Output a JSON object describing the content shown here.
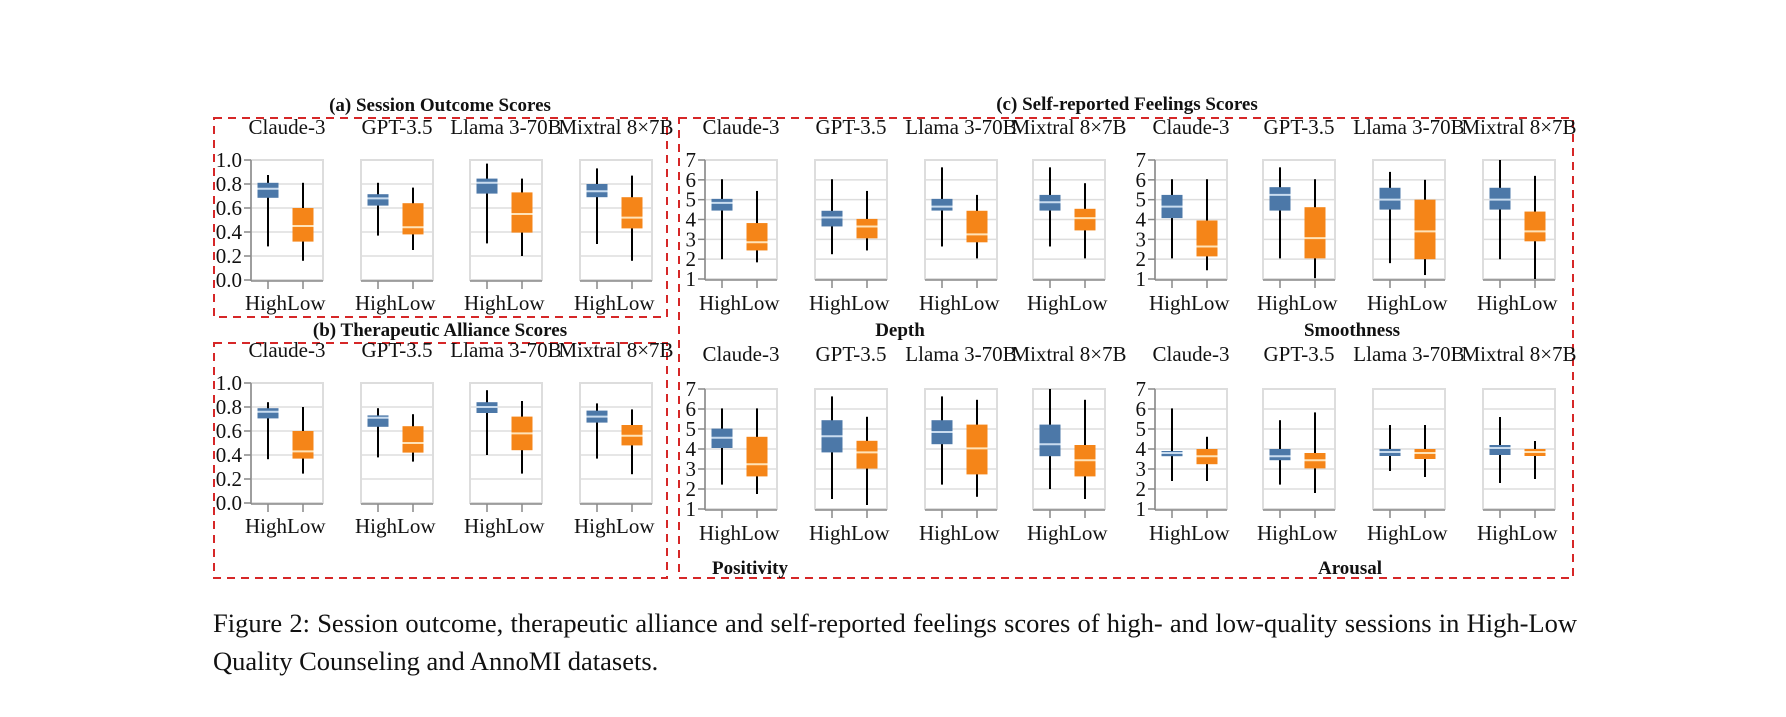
{
  "figure": {
    "caption": "Figure 2: Session outcome, therapeutic alliance and self-reported feelings scores of high- and low-quality sessions in High-Low Quality Counseling and AnnoMI datasets.",
    "group_c_title": "(c) Self-reported Feelings Scores",
    "colors": {
      "High": "#4c78a8",
      "Low": "#f58518",
      "High_median": "#c9dcef",
      "Low_median": "#ffe3b8",
      "whisker": "#000000",
      "frame": "#dddddd",
      "dashed_border": "#d62728"
    }
  },
  "chart_data": [
    {
      "id": "a",
      "type": "box",
      "title": "(a) Session Outcome Scores",
      "xlabel": "",
      "ylim": [
        0,
        1
      ],
      "yticks": [
        "0.0",
        "0.2",
        "0.4",
        "0.6",
        "0.8",
        "1.0"
      ],
      "categories": [
        "High",
        "Low"
      ],
      "grid": true,
      "facets": [
        {
          "model": "Claude-3",
          "boxes": [
            {
              "category": "High",
              "min": 0.28,
              "q1": 0.685,
              "median": 0.76,
              "q3": 0.81,
              "max": 0.875
            },
            {
              "category": "Low",
              "min": 0.16,
              "q1": 0.32,
              "median": 0.45,
              "q3": 0.6,
              "max": 0.81
            }
          ]
        },
        {
          "model": "GPT-3.5",
          "boxes": [
            {
              "category": "High",
              "min": 0.37,
              "q1": 0.62,
              "median": 0.68,
              "q3": 0.715,
              "max": 0.81
            },
            {
              "category": "Low",
              "min": 0.25,
              "q1": 0.38,
              "median": 0.44,
              "q3": 0.64,
              "max": 0.77
            }
          ]
        },
        {
          "model": "Llama 3-70B",
          "boxes": [
            {
              "category": "High",
              "min": 0.305,
              "q1": 0.72,
              "median": 0.81,
              "q3": 0.845,
              "max": 0.97
            },
            {
              "category": "Low",
              "min": 0.2,
              "q1": 0.395,
              "median": 0.55,
              "q3": 0.73,
              "max": 0.845
            }
          ]
        },
        {
          "model": "Mixtral 8×7B",
          "boxes": [
            {
              "category": "High",
              "min": 0.3,
              "q1": 0.69,
              "median": 0.74,
              "q3": 0.8,
              "max": 0.93
            },
            {
              "category": "Low",
              "min": 0.16,
              "q1": 0.43,
              "median": 0.52,
              "q3": 0.69,
              "max": 0.87
            }
          ]
        }
      ]
    },
    {
      "id": "b",
      "type": "box",
      "title": "(b) Therapeutic Alliance Scores",
      "xlabel": "",
      "ylim": [
        0,
        1
      ],
      "yticks": [
        "0.0",
        "0.2",
        "0.4",
        "0.6",
        "0.8",
        "1.0"
      ],
      "categories": [
        "High",
        "Low"
      ],
      "grid": true,
      "facets": [
        {
          "model": "Claude-3",
          "boxes": [
            {
              "category": "High",
              "min": 0.365,
              "q1": 0.705,
              "median": 0.76,
              "q3": 0.79,
              "max": 0.84
            },
            {
              "category": "Low",
              "min": 0.245,
              "q1": 0.37,
              "median": 0.43,
              "q3": 0.6,
              "max": 0.8
            }
          ]
        },
        {
          "model": "GPT-3.5",
          "boxes": [
            {
              "category": "High",
              "min": 0.38,
              "q1": 0.635,
              "median": 0.71,
              "q3": 0.73,
              "max": 0.79
            },
            {
              "category": "Low",
              "min": 0.345,
              "q1": 0.42,
              "median": 0.5,
              "q3": 0.64,
              "max": 0.74
            }
          ]
        },
        {
          "model": "Llama 3-70B",
          "boxes": [
            {
              "category": "High",
              "min": 0.4,
              "q1": 0.75,
              "median": 0.8,
              "q3": 0.84,
              "max": 0.94
            },
            {
              "category": "Low",
              "min": 0.245,
              "q1": 0.44,
              "median": 0.58,
              "q3": 0.72,
              "max": 0.85
            }
          ]
        },
        {
          "model": "Mixtral 8×7B",
          "boxes": [
            {
              "category": "High",
              "min": 0.37,
              "q1": 0.67,
              "median": 0.72,
              "q3": 0.77,
              "max": 0.83
            },
            {
              "category": "Low",
              "min": 0.24,
              "q1": 0.48,
              "median": 0.56,
              "q3": 0.65,
              "max": 0.78
            }
          ]
        }
      ]
    },
    {
      "id": "c-depth",
      "type": "box",
      "group": "(c) Self-reported Feelings Scores",
      "title": "",
      "xlabel": "Depth",
      "ylim": [
        1,
        7
      ],
      "yticks": [
        "1",
        "2",
        "3",
        "4",
        "5",
        "6",
        "7"
      ],
      "categories": [
        "High",
        "Low"
      ],
      "grid": true,
      "facets": [
        {
          "model": "Claude-3",
          "boxes": [
            {
              "category": "High",
              "min": 2.0,
              "q1": 4.45,
              "median": 4.84,
              "q3": 5.04,
              "max": 6.03
            },
            {
              "category": "Low",
              "min": 1.84,
              "q1": 2.44,
              "median": 2.85,
              "q3": 3.82,
              "max": 5.44
            }
          ]
        },
        {
          "model": "GPT-3.5",
          "boxes": [
            {
              "category": "High",
              "min": 2.25,
              "q1": 3.65,
              "median": 4.1,
              "q3": 4.44,
              "max": 6.03
            },
            {
              "category": "Low",
              "min": 2.44,
              "q1": 3.05,
              "median": 3.65,
              "q3": 4.03,
              "max": 5.44
            }
          ]
        },
        {
          "model": "Llama 3-70B",
          "boxes": [
            {
              "category": "High",
              "min": 2.64,
              "q1": 4.45,
              "median": 4.65,
              "q3": 5.04,
              "max": 6.63
            },
            {
              "category": "Low",
              "min": 2.04,
              "q1": 2.85,
              "median": 3.25,
              "q3": 4.44,
              "max": 5.24
            }
          ]
        },
        {
          "model": "Mixtral 8×7B",
          "boxes": [
            {
              "category": "High",
              "min": 2.64,
              "q1": 4.45,
              "median": 4.87,
              "q3": 5.24,
              "max": 6.63
            },
            {
              "category": "Low",
              "min": 2.04,
              "q1": 3.45,
              "median": 4.07,
              "q3": 4.54,
              "max": 5.83
            }
          ]
        }
      ]
    },
    {
      "id": "c-smoothness",
      "type": "box",
      "group": "(c) Self-reported Feelings Scores",
      "title": "",
      "xlabel": "Smoothness",
      "ylim": [
        1,
        7
      ],
      "yticks": [
        "1",
        "2",
        "3",
        "4",
        "5",
        "6",
        "7"
      ],
      "categories": [
        "High",
        "Low"
      ],
      "grid": true,
      "facets": [
        {
          "model": "Claude-3",
          "boxes": [
            {
              "category": "High",
              "min": 2.04,
              "q1": 4.07,
              "median": 4.65,
              "q3": 5.24,
              "max": 6.03
            },
            {
              "category": "Low",
              "min": 1.44,
              "q1": 2.14,
              "median": 2.64,
              "q3": 3.95,
              "max": 6.03
            }
          ]
        },
        {
          "model": "GPT-3.5",
          "boxes": [
            {
              "category": "High",
              "min": 2.04,
              "q1": 4.45,
              "median": 5.24,
              "q3": 5.63,
              "max": 6.63
            },
            {
              "category": "Low",
              "min": 1.04,
              "q1": 2.04,
              "median": 3.06,
              "q3": 4.62,
              "max": 6.03
            }
          ]
        },
        {
          "model": "Llama 3-70B",
          "boxes": [
            {
              "category": "High",
              "min": 1.8,
              "q1": 4.5,
              "median": 5.0,
              "q3": 5.6,
              "max": 6.4
            },
            {
              "category": "Low",
              "min": 1.2,
              "q1": 2.0,
              "median": 3.4,
              "q3": 5.0,
              "max": 6.0
            }
          ]
        },
        {
          "model": "Mixtral 8×7B",
          "boxes": [
            {
              "category": "High",
              "min": 2.0,
              "q1": 4.5,
              "median": 5.0,
              "q3": 5.6,
              "max": 7.0
            },
            {
              "category": "Low",
              "min": 1.0,
              "q1": 2.9,
              "median": 3.4,
              "q3": 4.4,
              "max": 6.2
            }
          ]
        }
      ]
    },
    {
      "id": "c-positivity",
      "type": "box",
      "group": "(c) Self-reported Feelings Scores",
      "title": "",
      "xlabel": "Positivity",
      "ylim": [
        1,
        7
      ],
      "yticks": [
        "1",
        "2",
        "3",
        "4",
        "5",
        "6",
        "7"
      ],
      "categories": [
        "High",
        "Low"
      ],
      "grid": true,
      "facets": [
        {
          "model": "Claude-3",
          "boxes": [
            {
              "category": "High",
              "min": 2.22,
              "q1": 4.05,
              "median": 4.56,
              "q3": 5.02,
              "max": 6.03
            },
            {
              "category": "Low",
              "min": 1.75,
              "q1": 2.63,
              "median": 3.24,
              "q3": 4.61,
              "max": 6.03
            }
          ]
        },
        {
          "model": "GPT-3.5",
          "boxes": [
            {
              "category": "High",
              "min": 1.5,
              "q1": 3.83,
              "median": 4.64,
              "q3": 5.44,
              "max": 6.63
            },
            {
              "category": "Low",
              "min": 1.2,
              "q1": 3.02,
              "median": 3.83,
              "q3": 4.41,
              "max": 5.61
            }
          ]
        },
        {
          "model": "Llama 3-70B",
          "boxes": [
            {
              "category": "High",
              "min": 2.22,
              "q1": 4.24,
              "median": 4.85,
              "q3": 5.44,
              "max": 6.63
            },
            {
              "category": "Low",
              "min": 1.61,
              "q1": 2.73,
              "median": 4.03,
              "q3": 5.22,
              "max": 6.46
            }
          ]
        },
        {
          "model": "Mixtral 8×7B",
          "boxes": [
            {
              "category": "High",
              "min": 2.0,
              "q1": 3.64,
              "median": 4.24,
              "q3": 5.22,
              "max": 7.0
            },
            {
              "category": "Low",
              "min": 1.5,
              "q1": 2.63,
              "median": 3.44,
              "q3": 4.2,
              "max": 6.46
            }
          ]
        }
      ]
    },
    {
      "id": "c-arousal",
      "type": "box",
      "group": "(c) Self-reported Feelings Scores",
      "title": "",
      "xlabel": "Arousal",
      "ylim": [
        1,
        7
      ],
      "yticks": [
        "1",
        "2",
        "3",
        "4",
        "5",
        "6",
        "7"
      ],
      "categories": [
        "High",
        "Low"
      ],
      "grid": true,
      "facets": [
        {
          "model": "Claude-3",
          "boxes": [
            {
              "category": "High",
              "min": 2.4,
              "q1": 3.64,
              "median": 3.8,
              "q3": 3.9,
              "max": 6.03
            },
            {
              "category": "Low",
              "min": 2.4,
              "q1": 3.24,
              "median": 3.64,
              "q3": 4.0,
              "max": 4.61
            }
          ]
        },
        {
          "model": "GPT-3.5",
          "boxes": [
            {
              "category": "High",
              "min": 2.22,
              "q1": 3.44,
              "median": 3.64,
              "q3": 4.0,
              "max": 5.44
            },
            {
              "category": "Low",
              "min": 1.8,
              "q1": 3.03,
              "median": 3.44,
              "q3": 3.8,
              "max": 5.83
            }
          ]
        },
        {
          "model": "Llama 3-70B",
          "boxes": [
            {
              "category": "High",
              "min": 2.9,
              "q1": 3.65,
              "median": 3.85,
              "q3": 4.0,
              "max": 5.2
            },
            {
              "category": "Low",
              "min": 2.6,
              "q1": 3.5,
              "median": 3.8,
              "q3": 4.0,
              "max": 5.2
            }
          ]
        },
        {
          "model": "Mixtral 8×7B",
          "boxes": [
            {
              "category": "High",
              "min": 2.3,
              "q1": 3.7,
              "median": 4.05,
              "q3": 4.2,
              "max": 5.6
            },
            {
              "category": "Low",
              "min": 2.5,
              "q1": 3.65,
              "median": 3.85,
              "q3": 4.0,
              "max": 4.4
            }
          ]
        }
      ]
    }
  ]
}
